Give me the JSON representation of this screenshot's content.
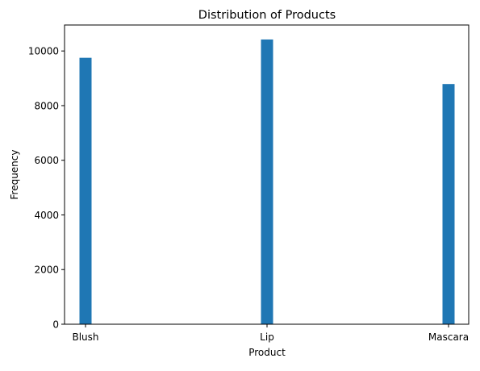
{
  "chart_data": {
    "type": "bar",
    "title": "Distribution of Products",
    "xlabel": "Product",
    "ylabel": "Frequency",
    "categories": [
      "Blush",
      "Lip",
      "Mascara"
    ],
    "values": [
      9750,
      10420,
      8790
    ],
    "ylim": [
      0,
      10950
    ],
    "yticks": [
      0,
      2000,
      4000,
      6000,
      8000,
      10000
    ],
    "grid": false,
    "bar_color": "#1f77b4"
  }
}
